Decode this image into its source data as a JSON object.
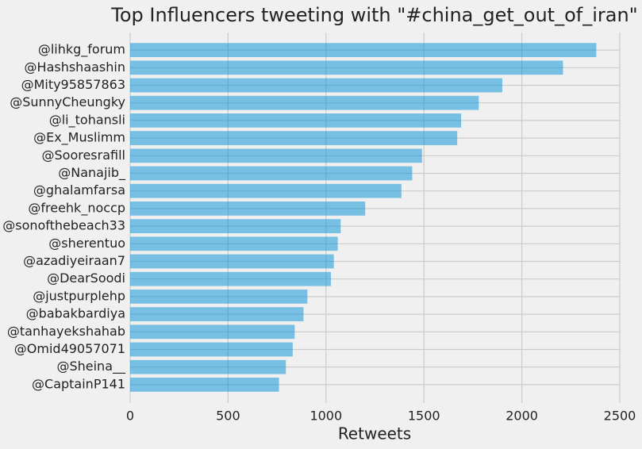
{
  "chart_data": {
    "type": "barh",
    "title": "Top Influencers tweeting with \"#china_get_out_of_iran\"",
    "x_label": "Retweets",
    "categories": [
      "@lihkg_forum",
      "@Hashshaashin",
      "@Mity95857863",
      "@SunnyCheungky",
      "@li_tohansli",
      "@Ex_Muslimm",
      "@Sooresrafill",
      "@Nanajib_",
      "@ghalamfarsa",
      "@freehk_noccp",
      "@sonofthebeach33",
      "@sherentuo",
      "@azadiyeiraan7",
      "@DearSoodi",
      "@justpurplehp",
      "@babakbardiya",
      "@tanhayekshahab",
      "@Omid49057071",
      "@Sheina__",
      "@CaptainP141"
    ],
    "values": [
      2380,
      2210,
      1900,
      1780,
      1690,
      1670,
      1490,
      1440,
      1385,
      1200,
      1075,
      1060,
      1040,
      1025,
      905,
      885,
      840,
      830,
      795,
      760
    ],
    "color": "#008fd5",
    "xlim": [
      0,
      2500
    ],
    "xticks": [
      0,
      500,
      1000,
      1500,
      2000,
      2500
    ],
    "grid": true
  }
}
